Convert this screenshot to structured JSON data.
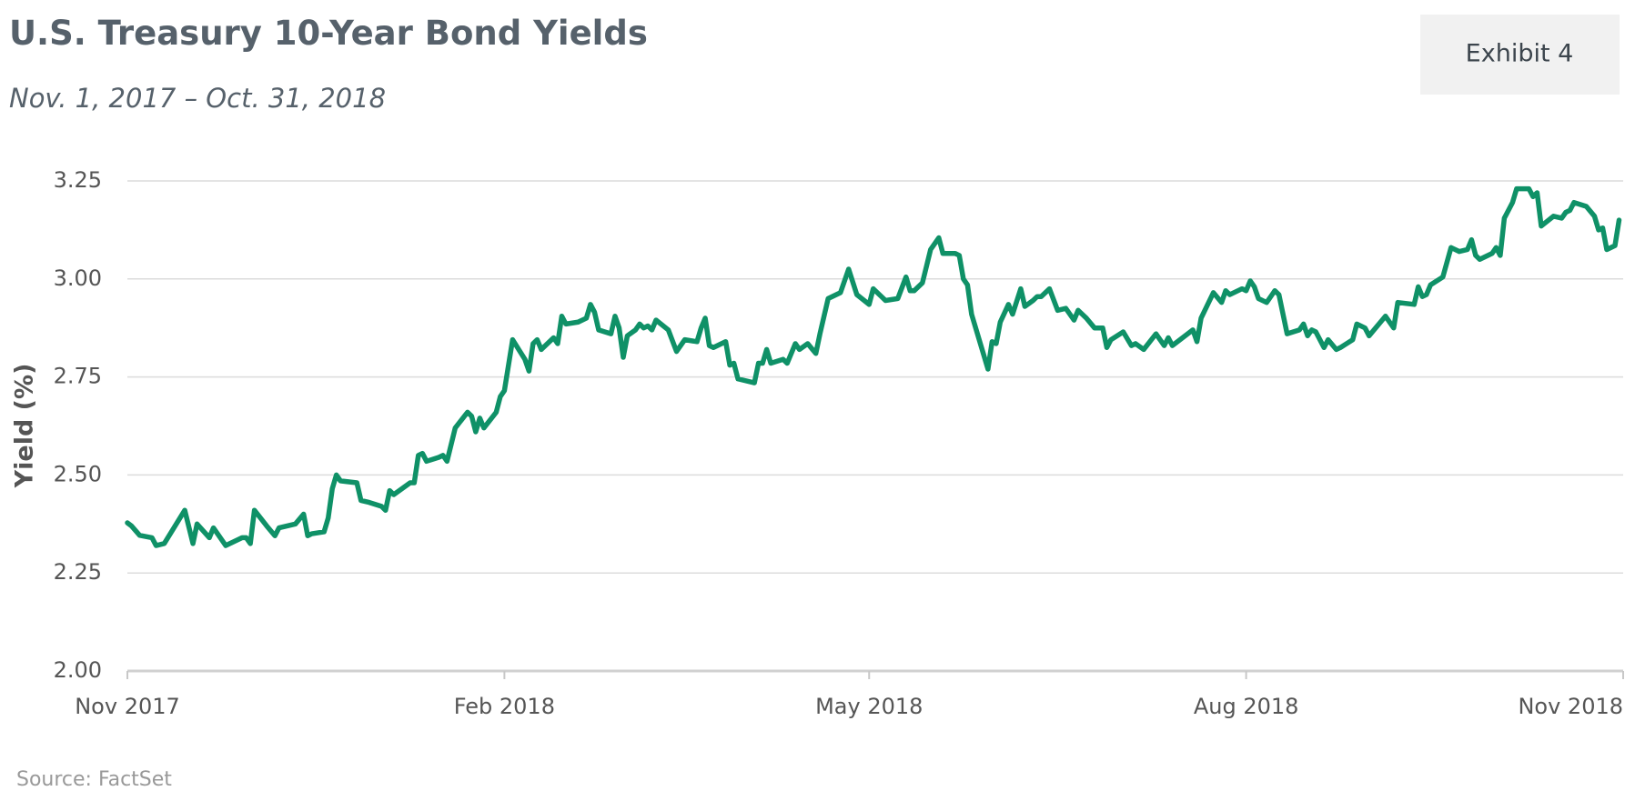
{
  "chart_data": {
    "type": "line",
    "title": "U.S. Treasury 10-Year Bond Yields",
    "subtitle": "Nov. 1, 2017 – Oct. 31, 2018",
    "exhibit": "Exhibit 4",
    "source": "Source: FactSet",
    "ylabel": "Yield (%)",
    "xlim": [
      "2017-11-01",
      "2018-11-01"
    ],
    "xticks": [
      {
        "value": "2017-11-01",
        "label": "Nov 2017"
      },
      {
        "value": "2018-02-01",
        "label": "Feb 2018"
      },
      {
        "value": "2018-05-01",
        "label": "May 2018"
      },
      {
        "value": "2018-08-01",
        "label": "Aug 2018"
      },
      {
        "value": "2018-11-01",
        "label": "Nov 2018"
      }
    ],
    "ylim": [
      2.0,
      3.25
    ],
    "yticks": [
      {
        "value": 2.0,
        "label": "2.00"
      },
      {
        "value": 2.25,
        "label": "2.25"
      },
      {
        "value": 2.5,
        "label": "2.50"
      },
      {
        "value": 2.75,
        "label": "2.75"
      },
      {
        "value": 3.0,
        "label": "3.00"
      },
      {
        "value": 3.25,
        "label": "3.25"
      }
    ],
    "grid": true,
    "x": [
      "2017-11-01",
      "2017-11-02",
      "2017-11-04",
      "2017-11-07",
      "2017-11-08",
      "2017-11-10",
      "2017-11-15",
      "2017-11-17",
      "2017-11-18",
      "2017-11-21",
      "2017-11-22",
      "2017-11-25",
      "2017-11-29",
      "2017-11-30",
      "2017-12-01",
      "2017-12-02",
      "2017-12-05",
      "2017-12-07",
      "2017-12-08",
      "2017-12-12",
      "2017-12-14",
      "2017-12-15",
      "2017-12-16",
      "2017-12-19",
      "2017-12-20",
      "2017-12-21",
      "2017-12-22",
      "2017-12-23",
      "2017-12-27",
      "2017-12-28",
      "2017-12-30",
      "2018-01-02",
      "2018-01-03",
      "2018-01-04",
      "2018-01-05",
      "2018-01-09",
      "2018-01-10",
      "2018-01-11",
      "2018-01-12",
      "2018-01-13",
      "2018-01-16",
      "2018-01-17",
      "2018-01-18",
      "2018-01-20",
      "2018-01-23",
      "2018-01-24",
      "2018-01-25",
      "2018-01-26",
      "2018-01-27",
      "2018-01-30",
      "2018-01-31",
      "2018-02-01",
      "2018-02-03",
      "2018-02-06",
      "2018-02-07",
      "2018-02-08",
      "2018-02-09",
      "2018-02-10",
      "2018-02-13",
      "2018-02-14",
      "2018-02-15",
      "2018-02-16",
      "2018-02-19",
      "2018-02-21",
      "2018-02-22",
      "2018-02-23",
      "2018-02-24",
      "2018-02-27",
      "2018-02-28",
      "2018-03-01",
      "2018-03-02",
      "2018-03-03",
      "2018-03-05",
      "2018-03-06",
      "2018-03-07",
      "2018-03-08",
      "2018-03-09",
      "2018-03-10",
      "2018-03-13",
      "2018-03-15",
      "2018-03-17",
      "2018-03-20",
      "2018-03-21",
      "2018-03-22",
      "2018-03-23",
      "2018-03-24",
      "2018-03-27",
      "2018-03-28",
      "2018-03-29",
      "2018-03-30",
      "2018-04-03",
      "2018-04-04",
      "2018-04-05",
      "2018-04-06",
      "2018-04-07",
      "2018-04-10",
      "2018-04-11",
      "2018-04-13",
      "2018-04-14",
      "2018-04-16",
      "2018-04-18",
      "2018-04-19",
      "2018-04-21",
      "2018-04-24",
      "2018-04-26",
      "2018-04-28",
      "2018-05-01",
      "2018-05-02",
      "2018-05-04",
      "2018-05-05",
      "2018-05-08",
      "2018-05-10",
      "2018-05-11",
      "2018-05-12",
      "2018-05-14",
      "2018-05-16",
      "2018-05-18",
      "2018-05-19",
      "2018-05-22",
      "2018-05-23",
      "2018-05-24",
      "2018-05-25",
      "2018-05-26",
      "2018-05-30",
      "2018-05-31",
      "2018-06-01",
      "2018-06-02",
      "2018-06-04",
      "2018-06-05",
      "2018-06-07",
      "2018-06-08",
      "2018-06-10",
      "2018-06-11",
      "2018-06-12",
      "2018-06-14",
      "2018-06-16",
      "2018-06-18",
      "2018-06-20",
      "2018-06-21",
      "2018-06-23",
      "2018-06-25",
      "2018-06-27",
      "2018-06-28",
      "2018-06-29",
      "2018-07-02",
      "2018-07-04",
      "2018-07-05",
      "2018-07-07",
      "2018-07-10",
      "2018-07-12",
      "2018-07-13",
      "2018-07-14",
      "2018-07-19",
      "2018-07-20",
      "2018-07-21",
      "2018-07-24",
      "2018-07-26",
      "2018-07-27",
      "2018-07-28",
      "2018-07-31",
      "2018-08-01",
      "2018-08-02",
      "2018-08-03",
      "2018-08-04",
      "2018-08-06",
      "2018-08-08",
      "2018-08-09",
      "2018-08-11",
      "2018-08-14",
      "2018-08-15",
      "2018-08-16",
      "2018-08-17",
      "2018-08-18",
      "2018-08-20",
      "2018-08-21",
      "2018-08-23",
      "2018-08-24",
      "2018-08-27",
      "2018-08-28",
      "2018-08-30",
      "2018-08-31",
      "2018-09-04",
      "2018-09-06",
      "2018-09-07",
      "2018-09-11",
      "2018-09-12",
      "2018-09-13",
      "2018-09-14",
      "2018-09-15",
      "2018-09-18",
      "2018-09-20",
      "2018-09-22",
      "2018-09-24",
      "2018-09-25",
      "2018-09-26",
      "2018-09-27",
      "2018-09-30",
      "2018-10-01",
      "2018-10-02",
      "2018-10-03",
      "2018-10-05",
      "2018-10-06",
      "2018-10-09",
      "2018-10-10",
      "2018-10-11",
      "2018-10-12",
      "2018-10-15",
      "2018-10-17",
      "2018-10-18",
      "2018-10-19",
      "2018-10-20",
      "2018-10-23",
      "2018-10-25",
      "2018-10-26",
      "2018-10-27",
      "2018-10-28",
      "2018-10-30",
      "2018-10-31"
    ],
    "series": [
      {
        "name": "10-Year Yield",
        "color": "#0f9167",
        "values": [
          2.378,
          2.37,
          2.346,
          2.34,
          2.32,
          2.325,
          2.41,
          2.325,
          2.375,
          2.34,
          2.365,
          2.32,
          2.34,
          2.34,
          2.325,
          2.41,
          2.37,
          2.345,
          2.365,
          2.375,
          2.4,
          2.345,
          2.35,
          2.355,
          2.39,
          2.465,
          2.5,
          2.485,
          2.48,
          2.435,
          2.43,
          2.42,
          2.41,
          2.46,
          2.45,
          2.48,
          2.48,
          2.55,
          2.555,
          2.535,
          2.545,
          2.55,
          2.535,
          2.62,
          2.66,
          2.65,
          2.61,
          2.645,
          2.62,
          2.66,
          2.7,
          2.715,
          2.845,
          2.795,
          2.765,
          2.835,
          2.845,
          2.82,
          2.85,
          2.835,
          2.905,
          2.885,
          2.89,
          2.9,
          2.935,
          2.915,
          2.87,
          2.86,
          2.905,
          2.875,
          2.8,
          2.855,
          2.87,
          2.885,
          2.875,
          2.88,
          2.87,
          2.895,
          2.87,
          2.815,
          2.845,
          2.84,
          2.875,
          2.9,
          2.83,
          2.825,
          2.84,
          2.78,
          2.785,
          2.745,
          2.735,
          2.785,
          2.785,
          2.82,
          2.785,
          2.795,
          2.785,
          2.835,
          2.82,
          2.835,
          2.81,
          2.86,
          2.95,
          2.965,
          3.025,
          2.96,
          2.935,
          2.975,
          2.955,
          2.945,
          2.95,
          3.005,
          2.97,
          2.97,
          2.99,
          3.075,
          3.105,
          3.065,
          3.065,
          3.06,
          3.0,
          2.985,
          2.91,
          2.77,
          2.84,
          2.835,
          2.89,
          2.935,
          2.91,
          2.975,
          2.93,
          2.945,
          2.955,
          2.955,
          2.975,
          2.92,
          2.925,
          2.895,
          2.92,
          2.9,
          2.875,
          2.875,
          2.825,
          2.845,
          2.865,
          2.83,
          2.835,
          2.82,
          2.86,
          2.83,
          2.85,
          2.83,
          2.87,
          2.84,
          2.9,
          2.965,
          2.94,
          2.97,
          2.96,
          2.975,
          2.97,
          2.995,
          2.98,
          2.95,
          2.94,
          2.97,
          2.96,
          2.86,
          2.87,
          2.885,
          2.855,
          2.87,
          2.865,
          2.825,
          2.845,
          2.82,
          2.825,
          2.845,
          2.885,
          2.875,
          2.855,
          2.905,
          2.875,
          2.94,
          2.935,
          2.98,
          2.955,
          2.96,
          2.985,
          3.005,
          3.08,
          3.07,
          3.075,
          3.1,
          3.06,
          3.05,
          3.065,
          3.08,
          3.06,
          3.155,
          3.195,
          3.23,
          3.23,
          3.21,
          3.22,
          3.135,
          3.16,
          3.155,
          3.17,
          3.175,
          3.195,
          3.185,
          3.16,
          3.125,
          3.13,
          3.075,
          3.085,
          3.15
        ]
      }
    ]
  }
}
